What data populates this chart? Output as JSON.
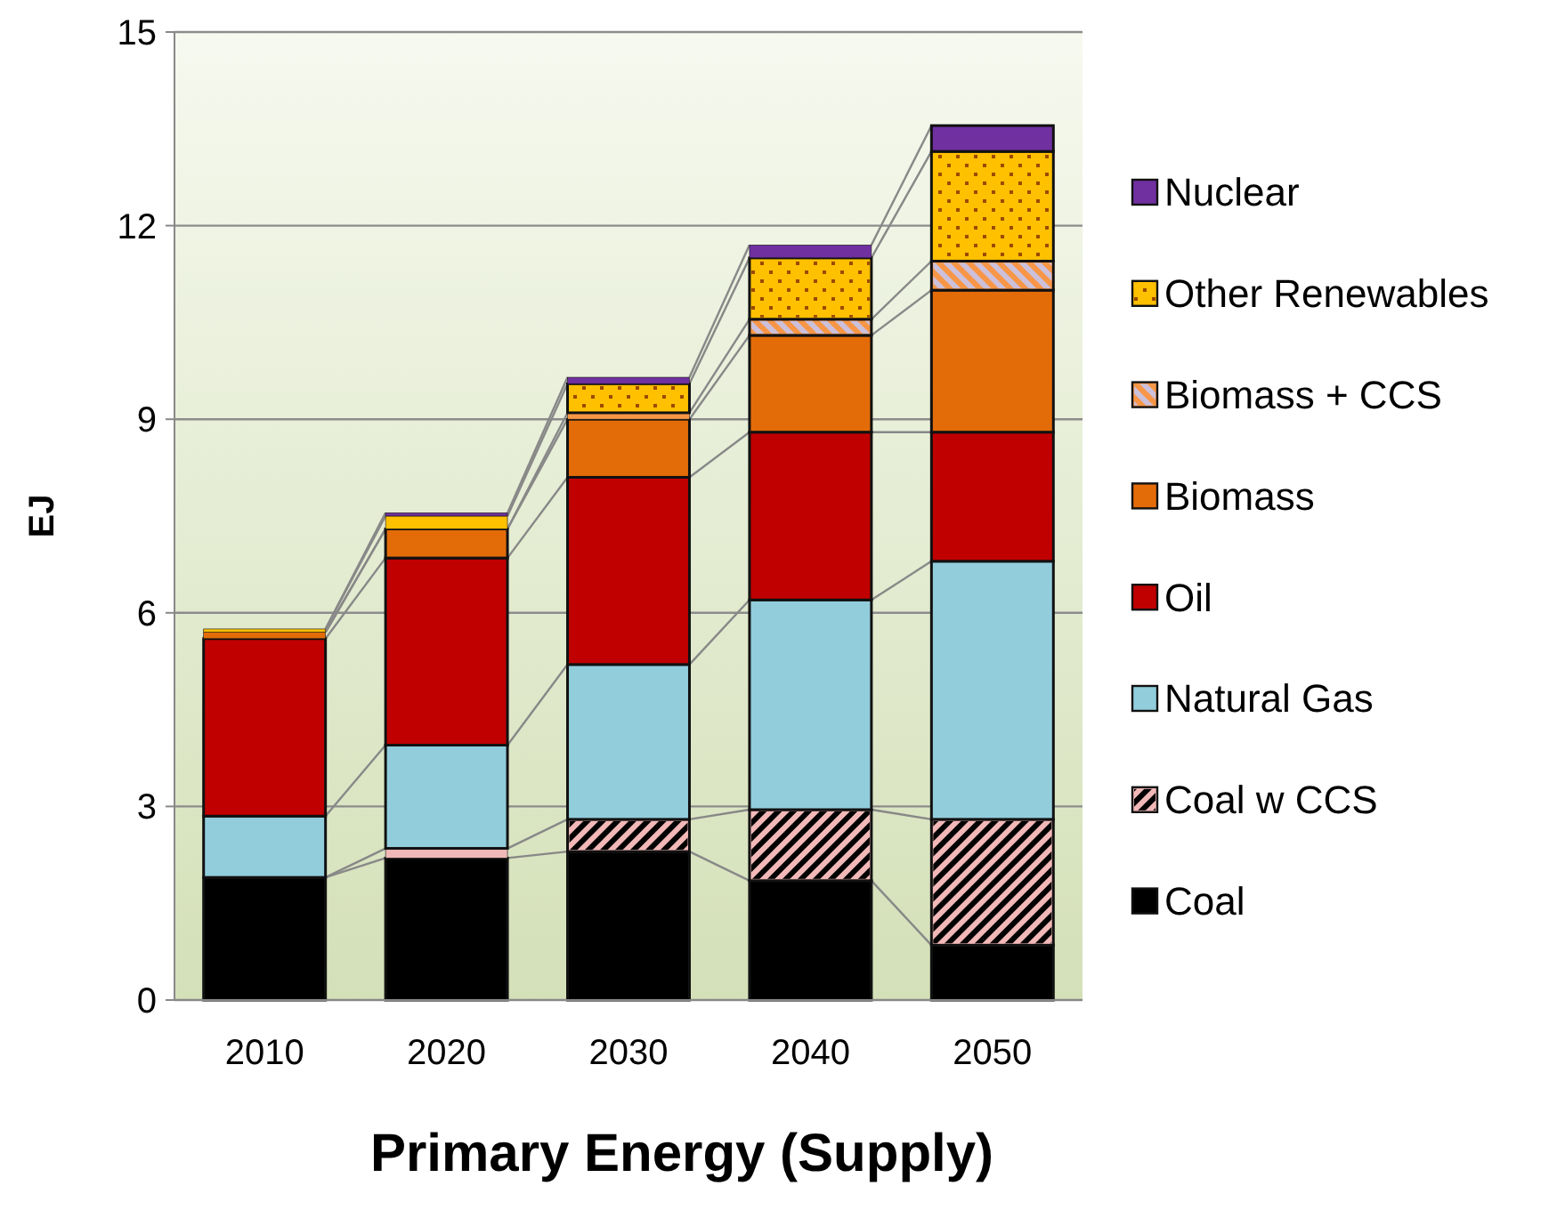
{
  "chart_data": {
    "type": "bar",
    "stacked": true,
    "xlabel": "Primary Energy (Supply)",
    "ylabel": "EJ",
    "categories": [
      "2010",
      "2020",
      "2030",
      "2040",
      "2050"
    ],
    "series": [
      {
        "name": "Coal",
        "color": "#000000",
        "values": [
          1.9,
          2.2,
          2.3,
          1.85,
          0.85
        ]
      },
      {
        "name": "Coal w CCS",
        "color": "#f2b8b8",
        "values": [
          0,
          0.15,
          0.5,
          1.1,
          1.95
        ]
      },
      {
        "name": "Natural Gas",
        "color": "#92cddc",
        "values": [
          0.95,
          1.6,
          2.4,
          3.25,
          4.0
        ]
      },
      {
        "name": "Oil",
        "color": "#c00000",
        "values": [
          2.75,
          2.9,
          2.9,
          2.6,
          2.0
        ]
      },
      {
        "name": "Biomass",
        "color": "#e36c09",
        "values": [
          0.1,
          0.45,
          0.9,
          1.5,
          2.2
        ]
      },
      {
        "name": "Biomass + CCS",
        "color": "#f79646",
        "values": [
          0,
          0,
          0.1,
          0.25,
          0.45
        ]
      },
      {
        "name": "Other Renewables",
        "color": "#ffc000",
        "values": [
          0.05,
          0.2,
          0.45,
          0.95,
          1.7
        ]
      },
      {
        "name": "Nuclear",
        "color": "#7030a0",
        "values": [
          0,
          0.05,
          0.1,
          0.2,
          0.4
        ]
      }
    ],
    "ylim": [
      0,
      15
    ],
    "yticks": [
      0,
      3,
      6,
      9,
      12,
      15
    ],
    "grid": "y",
    "legend": "right"
  }
}
